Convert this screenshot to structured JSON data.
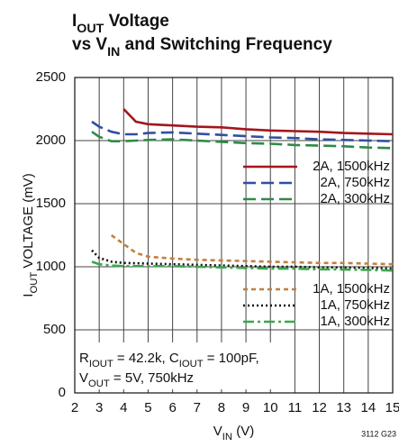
{
  "chart_data": {
    "type": "line",
    "title": [
      [
        {
          "text": "I"
        },
        {
          "text": "OUT",
          "sub": true
        },
        {
          "text": " Voltage"
        }
      ],
      [
        {
          "text": "vs V"
        },
        {
          "text": "IN",
          "sub": true
        },
        {
          "text": " and Switching Frequency"
        }
      ]
    ],
    "x_label": [
      {
        "text": "V"
      },
      {
        "text": "IN",
        "sub": true
      },
      {
        "text": " (V)"
      }
    ],
    "y_label": [
      {
        "text": "I"
      },
      {
        "text": "OUT",
        "sub": true
      },
      {
        "text": " VOLTAGE (mV)"
      }
    ],
    "annotation": [
      [
        {
          "text": "R"
        },
        {
          "text": "IOUT",
          "sub": true
        },
        {
          "text": " = 42.2k, C"
        },
        {
          "text": "IOUT",
          "sub": true
        },
        {
          "text": " = 100pF,"
        }
      ],
      [
        {
          "text": "V"
        },
        {
          "text": "OUT",
          "sub": true
        },
        {
          "text": " = 5V, 750kHz"
        }
      ]
    ],
    "figure_id": "3112 G23",
    "x": [
      2.7,
      3,
      3.5,
      4,
      4.5,
      5,
      6,
      7,
      8,
      9,
      10,
      11,
      12,
      13,
      14,
      15
    ],
    "series": [
      {
        "name": "2A, 1500kHz",
        "color": "#a3161c",
        "dash": "solid",
        "legend_group": 0,
        "values": [
          null,
          null,
          null,
          2250,
          2150,
          2130,
          2120,
          2110,
          2105,
          2090,
          2080,
          2075,
          2070,
          2060,
          2055,
          2050
        ]
      },
      {
        "name": "2A, 750kHz",
        "color": "#2f4fa3",
        "dash": "dash",
        "legend_group": 0,
        "values": [
          2150,
          2110,
          2070,
          2050,
          2050,
          2060,
          2065,
          2055,
          2045,
          2035,
          2025,
          2020,
          2010,
          2005,
          2000,
          1995
        ]
      },
      {
        "name": "2A, 300kHz",
        "color": "#2f8a48",
        "dash": "dash",
        "legend_group": 0,
        "values": [
          2070,
          2030,
          1995,
          1995,
          2000,
          2005,
          2010,
          2000,
          1990,
          1980,
          1975,
          1965,
          1960,
          1955,
          1945,
          1940
        ]
      },
      {
        "name": "1A, 1500kHz",
        "color": "#c0803e",
        "dash": "shortdash",
        "legend_group": 1,
        "values": [
          null,
          null,
          1250,
          1180,
          1110,
          1080,
          1065,
          1055,
          1050,
          1045,
          1040,
          1035,
          1030,
          1030,
          1025,
          1020
        ]
      },
      {
        "name": "1A, 750kHz",
        "color": "#111111",
        "dash": "dot",
        "legend_group": 1,
        "values": [
          1130,
          1070,
          1040,
          1030,
          1028,
          1025,
          1020,
          1015,
          1010,
          1005,
          1000,
          1000,
          995,
          995,
          990,
          985
        ]
      },
      {
        "name": "1A, 300kHz",
        "color": "#3aa84a",
        "dash": "dashdot",
        "legend_group": 1,
        "values": [
          1040,
          1020,
          1010,
          1005,
          1005,
          1005,
          1005,
          1000,
          995,
          990,
          985,
          985,
          980,
          978,
          975,
          970
        ]
      }
    ],
    "xlim": [
      2,
      15
    ],
    "xticks": [
      2,
      3,
      4,
      5,
      6,
      7,
      8,
      9,
      10,
      11,
      12,
      13,
      14,
      15
    ],
    "ylim": [
      0,
      2500
    ],
    "yticks": [
      0,
      500,
      1000,
      1500,
      2000,
      2500
    ],
    "grid": true
  }
}
